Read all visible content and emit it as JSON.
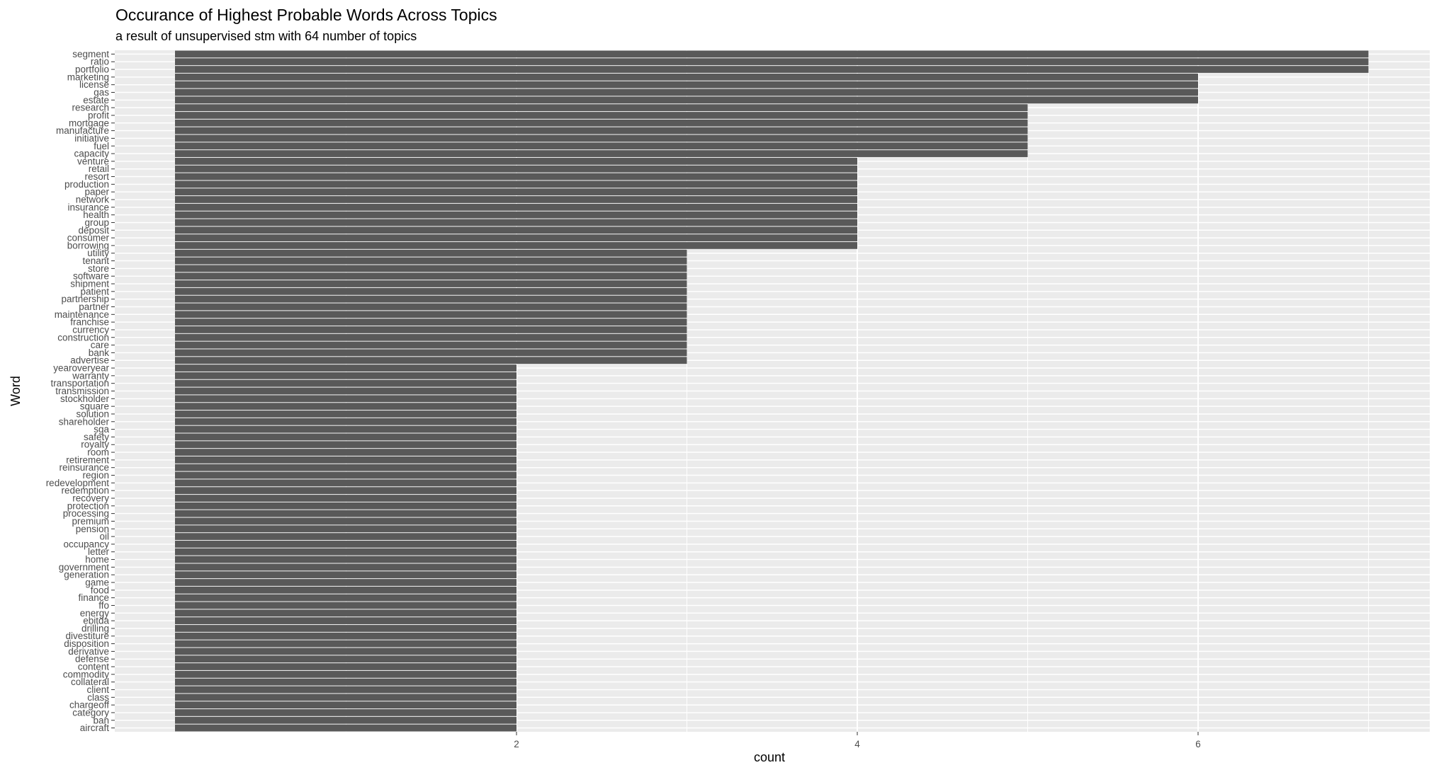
{
  "chart_data": {
    "type": "bar",
    "orientation": "horizontal",
    "title": "Occurance of Highest Probable Words Across Topics",
    "subtitle": "a result of unsupervised stm with 64 number of topics",
    "xlabel": "count",
    "ylabel": "Word",
    "xlim": [
      0,
      7.35
    ],
    "xticks": [
      2,
      4,
      6
    ],
    "grid": true,
    "bar_color": "#595959",
    "panel_color": "#ebebeb",
    "grid_color": "#ffffff",
    "categories": [
      "segment",
      "ratio",
      "portfolio",
      "marketing",
      "license",
      "gas",
      "estate",
      "research",
      "profit",
      "mortgage",
      "manufacture",
      "initiative",
      "fuel",
      "capacity",
      "venture",
      "retail",
      "resort",
      "production",
      "paper",
      "network",
      "insurance",
      "health",
      "group",
      "deposit",
      "consumer",
      "borrowing",
      "utility",
      "tenant",
      "store",
      "software",
      "shipment",
      "patient",
      "partnership",
      "partner",
      "maintenance",
      "franchise",
      "currency",
      "construction",
      "care",
      "bank",
      "advertise",
      "yearoveryear",
      "warranty",
      "transportation",
      "transmission",
      "stockholder",
      "square",
      "solution",
      "shareholder",
      "sga",
      "safety",
      "royalty",
      "room",
      "retirement",
      "reinsurance",
      "region",
      "redevelopment",
      "redemption",
      "recovery",
      "protection",
      "processing",
      "premium",
      "pension",
      "oil",
      "occupancy",
      "letter",
      "home",
      "government",
      "generation",
      "game",
      "food",
      "finance",
      "ffo",
      "energy",
      "ebitda",
      "drilling",
      "divestiture",
      "disposition",
      "derivative",
      "defense",
      "content",
      "commodity",
      "collateral",
      "client",
      "class",
      "chargeoff",
      "category",
      "ban",
      "aircraft"
    ],
    "values": [
      7,
      7,
      7,
      6,
      6,
      6,
      6,
      5,
      5,
      5,
      5,
      5,
      5,
      5,
      4,
      4,
      4,
      4,
      4,
      4,
      4,
      4,
      4,
      4,
      4,
      4,
      3,
      3,
      3,
      3,
      3,
      3,
      3,
      3,
      3,
      3,
      3,
      3,
      3,
      3,
      3,
      2,
      2,
      2,
      2,
      2,
      2,
      2,
      2,
      2,
      2,
      2,
      2,
      2,
      2,
      2,
      2,
      2,
      2,
      2,
      2,
      2,
      2,
      2,
      2,
      2,
      2,
      2,
      2,
      2,
      2,
      2,
      2,
      2,
      2,
      2,
      2,
      2,
      2,
      2,
      2,
      2,
      2,
      2,
      2,
      2,
      2,
      2,
      2
    ]
  }
}
